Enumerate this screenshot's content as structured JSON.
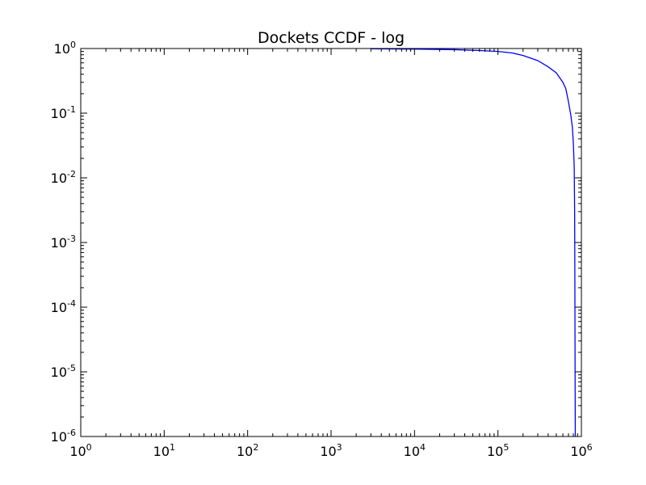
{
  "chart_data": {
    "type": "line",
    "title": "Dockets CCDF - log",
    "xlabel": "",
    "ylabel": "",
    "xscale": "log",
    "yscale": "log",
    "xlim": [
      1,
      1000000
    ],
    "ylim": [
      1e-06,
      1
    ],
    "grid": false,
    "x_ticks": [
      {
        "base": "10",
        "exp": "0"
      },
      {
        "base": "10",
        "exp": "1"
      },
      {
        "base": "10",
        "exp": "2"
      },
      {
        "base": "10",
        "exp": "3"
      },
      {
        "base": "10",
        "exp": "4"
      },
      {
        "base": "10",
        "exp": "5"
      },
      {
        "base": "10",
        "exp": "6"
      }
    ],
    "y_ticks": [
      {
        "base": "10",
        "exp": "0"
      },
      {
        "base": "10",
        "exp": "-1"
      },
      {
        "base": "10",
        "exp": "-2"
      },
      {
        "base": "10",
        "exp": "-3"
      },
      {
        "base": "10",
        "exp": "-4"
      },
      {
        "base": "10",
        "exp": "-5"
      },
      {
        "base": "10",
        "exp": "-6"
      }
    ],
    "series": [
      {
        "color": "#0000ff",
        "x": [
          3000,
          10000,
          30000,
          60000,
          100000,
          150000,
          200000,
          300000,
          400000,
          500000,
          600000,
          650000,
          700000,
          750000,
          780000,
          800000,
          820000,
          830000,
          835000,
          840000,
          845000
        ],
        "y": [
          0.99,
          0.98,
          0.96,
          0.93,
          0.9,
          0.85,
          0.78,
          0.65,
          0.52,
          0.42,
          0.3,
          0.24,
          0.15,
          0.09,
          0.06,
          0.035,
          0.015,
          0.003,
          0.0003,
          1e-05,
          1e-06
        ]
      }
    ]
  }
}
